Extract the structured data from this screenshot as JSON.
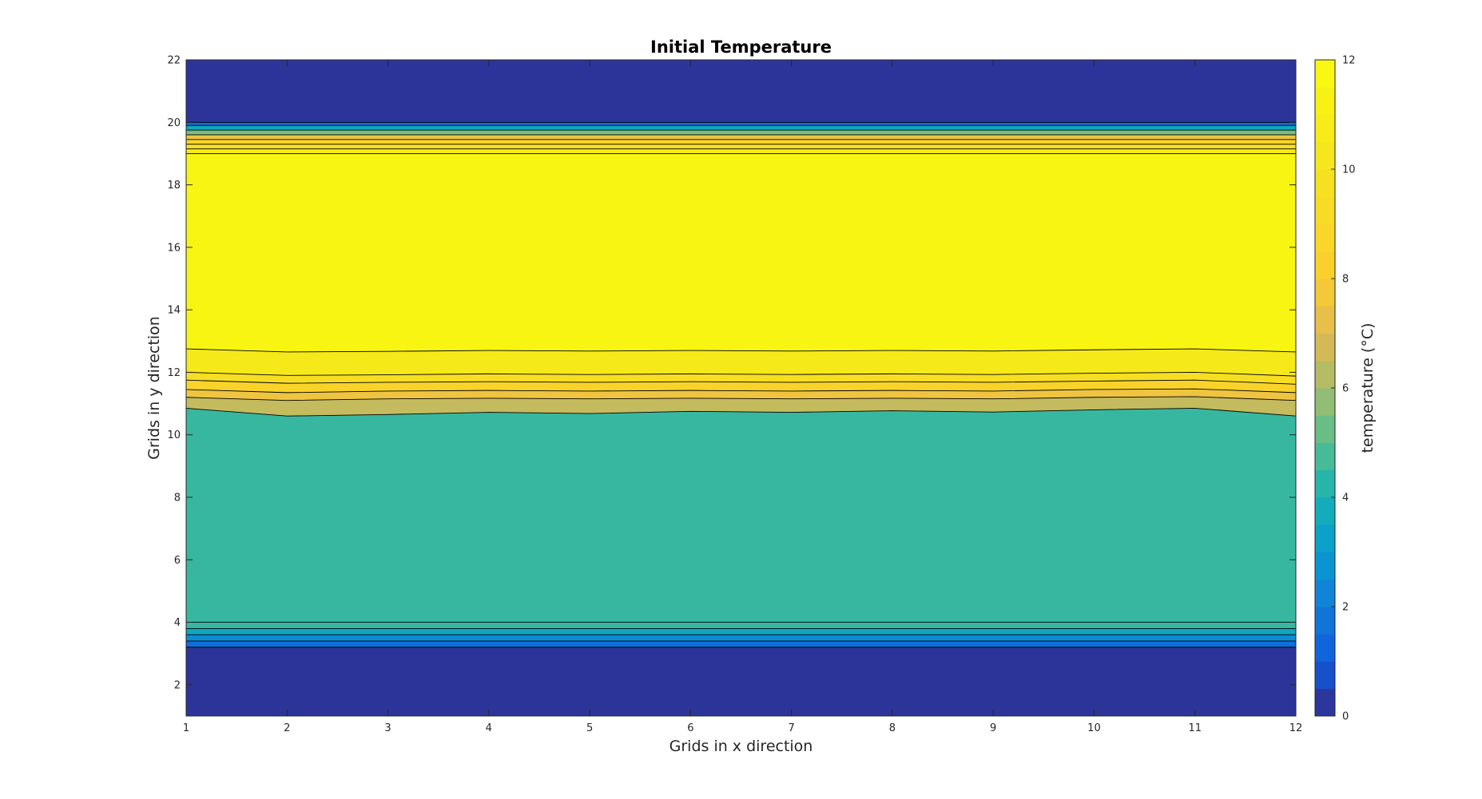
{
  "chart_data": {
    "type": "contour",
    "title": "Initial Temperature",
    "xlabel": "Grids in x direction",
    "ylabel": "Grids in y direction",
    "xlim": [
      1,
      12
    ],
    "ylim": [
      1,
      22
    ],
    "xticks": [
      1,
      2,
      3,
      4,
      5,
      6,
      7,
      8,
      9,
      10,
      11,
      12
    ],
    "yticks": [
      2,
      4,
      6,
      8,
      10,
      12,
      14,
      16,
      18,
      20,
      22
    ],
    "colorbar": {
      "label": "temperature (°C)",
      "range": [
        0,
        12
      ],
      "ticks": [
        0,
        2,
        4,
        6,
        8,
        10,
        12
      ],
      "colormap": "parula"
    },
    "x": [
      1,
      2,
      3,
      4,
      5,
      6,
      7,
      8,
      9,
      10,
      11,
      12
    ],
    "contour_levels": [
      0.5,
      1,
      1.5,
      2,
      2.5,
      3,
      3.5,
      4,
      4.5,
      5,
      6,
      7,
      8,
      9,
      10,
      11,
      11.5,
      12
    ],
    "horizontal_bands": [
      {
        "y_from": 1,
        "y_to": 3.2,
        "level": 0
      },
      {
        "y_from": 3.2,
        "y_to": 3.4,
        "level": 1
      },
      {
        "y_from": 3.4,
        "y_to": 3.6,
        "level": 2
      },
      {
        "y_from": 3.6,
        "y_to": 3.8,
        "level": 3
      },
      {
        "y_from": 3.8,
        "y_to": 4.0,
        "level": 4
      },
      {
        "y_from": 19.0,
        "y_to": 19.15,
        "level": 10
      },
      {
        "y_from": 19.15,
        "y_to": 19.3,
        "level": 9
      },
      {
        "y_from": 19.3,
        "y_to": 19.45,
        "level": 8
      },
      {
        "y_from": 19.45,
        "y_to": 19.6,
        "level": 7
      },
      {
        "y_from": 19.6,
        "y_to": 19.75,
        "level": 5
      },
      {
        "y_from": 19.75,
        "y_to": 19.9,
        "level": 3
      },
      {
        "y_from": 19.9,
        "y_to": 20.0,
        "level": 1
      },
      {
        "y_from": 20.0,
        "y_to": 22,
        "level": 0
      }
    ],
    "wavy_boundaries": [
      {
        "level_below": 5,
        "level_above": 6,
        "y": [
          10.85,
          10.6,
          10.65,
          10.72,
          10.68,
          10.75,
          10.72,
          10.77,
          10.73,
          10.8,
          10.85,
          10.6
        ]
      },
      {
        "level_below": 6,
        "level_above": 7,
        "y": [
          11.2,
          11.1,
          11.15,
          11.17,
          11.15,
          11.17,
          11.15,
          11.17,
          11.15,
          11.2,
          11.22,
          11.1
        ]
      },
      {
        "level_below": 7,
        "level_above": 8,
        "y": [
          11.45,
          11.35,
          11.4,
          11.42,
          11.4,
          11.42,
          11.4,
          11.42,
          11.4,
          11.45,
          11.47,
          11.35
        ]
      },
      {
        "level_below": 8,
        "level_above": 9,
        "y": [
          11.75,
          11.65,
          11.68,
          11.7,
          11.68,
          11.7,
          11.68,
          11.7,
          11.68,
          11.72,
          11.75,
          11.62
        ]
      },
      {
        "level_below": 9,
        "level_above": 10,
        "y": [
          12.0,
          11.9,
          11.92,
          11.95,
          11.93,
          11.95,
          11.93,
          11.95,
          11.93,
          11.97,
          12.0,
          11.88
        ]
      },
      {
        "level_below": 10,
        "level_above": 11,
        "y": [
          12.75,
          12.65,
          12.67,
          12.7,
          12.68,
          12.7,
          12.68,
          12.7,
          12.68,
          12.72,
          12.75,
          12.65
        ]
      }
    ],
    "band_values": [
      {
        "region": "y 1–3.2",
        "temperature": 0
      },
      {
        "region": "y 4–10.7",
        "temperature": 4.5
      },
      {
        "region": "y 12.7–19",
        "temperature": 11
      }
    ]
  }
}
